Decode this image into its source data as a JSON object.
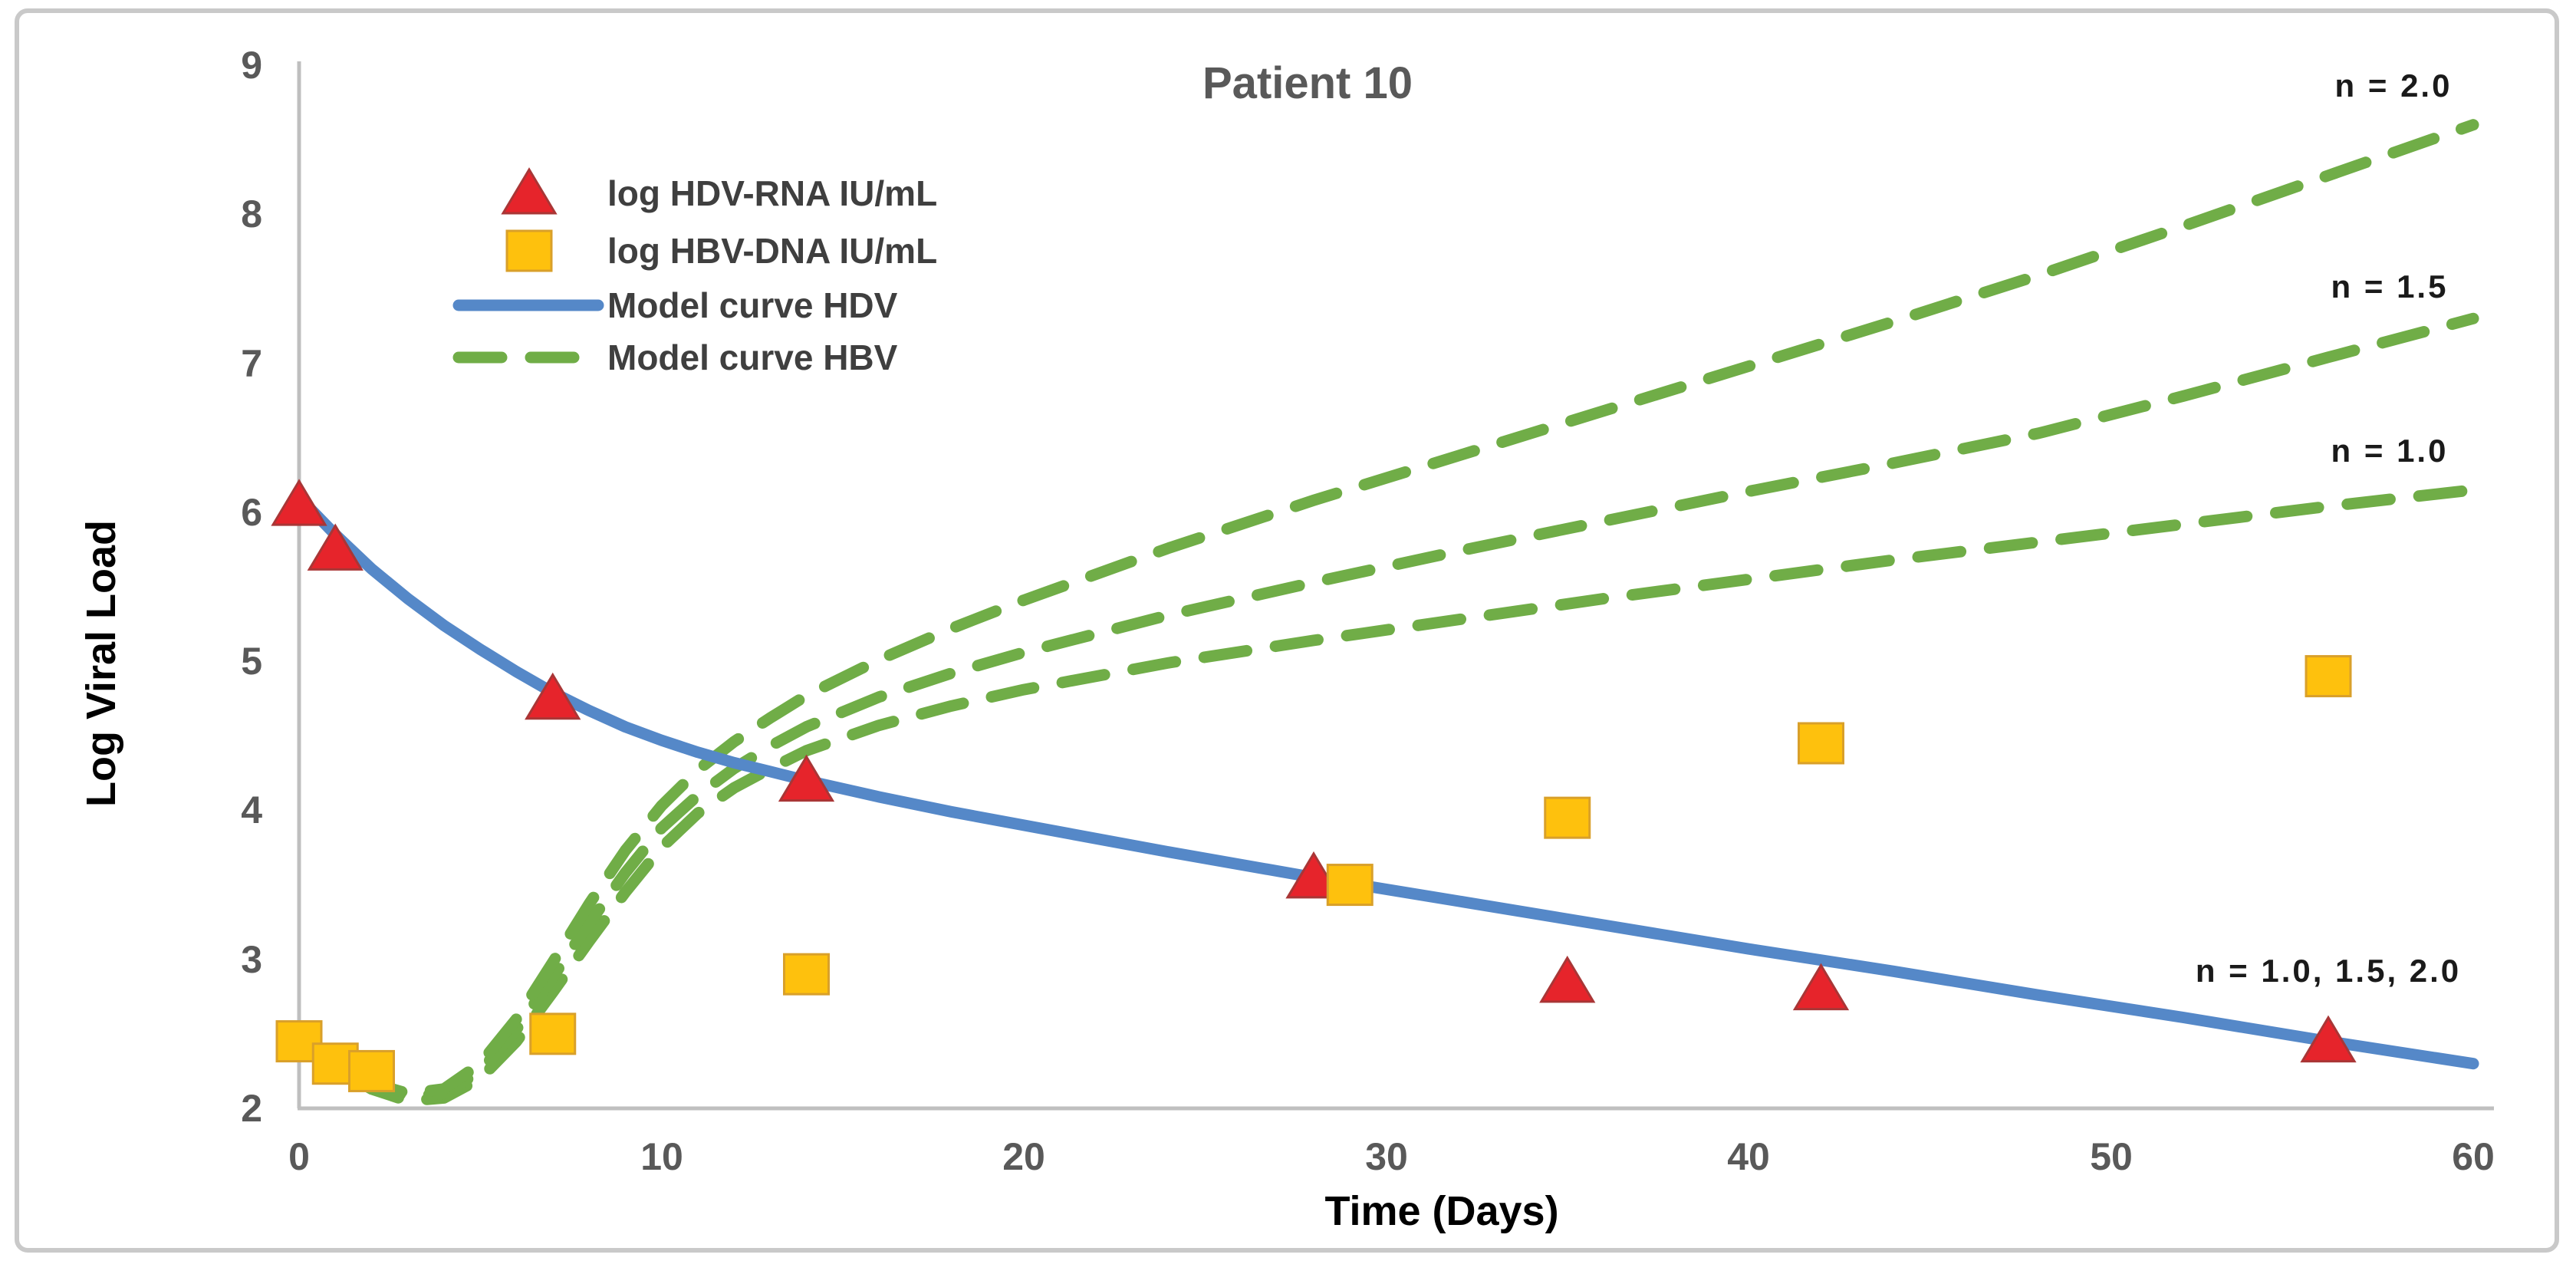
{
  "figure": {
    "title": "Patient 10",
    "x_axis_label": "Time (Days)",
    "y_axis_label": "Log Viral Load"
  },
  "legend": [
    {
      "label": "log HDV-RNA IU/mL",
      "marker": "triangle",
      "color": "#e6242b"
    },
    {
      "label": "log HBV-DNA IU/mL",
      "marker": "square",
      "color": "#fec10d"
    },
    {
      "label": "Model curve HDV",
      "marker": "line",
      "color": "#5588c8"
    },
    {
      "label": "Model curve HBV",
      "marker": "dashed-line",
      "color": "#70ad47"
    }
  ],
  "chart_data": {
    "type": "line",
    "title": "Patient 10",
    "xlabel": "Time (Days)",
    "ylabel": "Log Viral Load",
    "xlim": [
      0,
      60
    ],
    "ylim": [
      2,
      9
    ],
    "x_ticks": [
      0,
      10,
      20,
      30,
      40,
      50,
      60
    ],
    "y_ticks": [
      2,
      3,
      4,
      5,
      6,
      7,
      8,
      9
    ],
    "grid": false,
    "legend_position": "upper-left-inside",
    "series": [
      {
        "name": "log HDV-RNA IU/mL",
        "type": "scatter",
        "marker": "triangle",
        "color": "#e6242b",
        "points": [
          [
            0,
            6.05
          ],
          [
            1,
            5.75
          ],
          [
            7,
            4.75
          ],
          [
            14,
            4.2
          ],
          [
            28,
            3.55
          ],
          [
            35,
            2.85
          ],
          [
            42,
            2.8
          ],
          [
            56,
            2.45
          ]
        ]
      },
      {
        "name": "log HBV-DNA IU/mL",
        "type": "scatter",
        "marker": "square",
        "color": "#fec10d",
        "points": [
          [
            0,
            2.45
          ],
          [
            1,
            2.3
          ],
          [
            2,
            2.25
          ],
          [
            7,
            2.5
          ],
          [
            14,
            2.9
          ],
          [
            29,
            3.5
          ],
          [
            35,
            3.95
          ],
          [
            42,
            4.45
          ],
          [
            56,
            4.9
          ]
        ]
      },
      {
        "name": "Model curve HDV",
        "type": "line",
        "style": "solid",
        "color": "#5588c8",
        "points": [
          [
            0,
            6.1
          ],
          [
            1,
            5.85
          ],
          [
            2,
            5.62
          ],
          [
            3,
            5.42
          ],
          [
            4,
            5.24
          ],
          [
            5,
            5.08
          ],
          [
            6,
            4.93
          ],
          [
            7,
            4.79
          ],
          [
            8,
            4.67
          ],
          [
            9,
            4.56
          ],
          [
            10,
            4.47
          ],
          [
            11,
            4.39
          ],
          [
            12,
            4.32
          ],
          [
            13,
            4.26
          ],
          [
            14,
            4.2
          ],
          [
            16,
            4.09
          ],
          [
            18,
            3.99
          ],
          [
            20,
            3.9
          ],
          [
            24,
            3.72
          ],
          [
            28,
            3.55
          ],
          [
            32,
            3.39
          ],
          [
            36,
            3.23
          ],
          [
            40,
            3.07
          ],
          [
            44,
            2.92
          ],
          [
            48,
            2.76
          ],
          [
            52,
            2.61
          ],
          [
            56,
            2.45
          ],
          [
            60,
            2.3
          ]
        ]
      },
      {
        "name": "Model curve HBV (n = 1.0)",
        "type": "line",
        "style": "dashed",
        "color": "#70ad47",
        "points": [
          [
            0,
            2.45
          ],
          [
            1,
            2.27
          ],
          [
            2,
            2.13
          ],
          [
            3,
            2.05
          ],
          [
            4,
            2.07
          ],
          [
            5,
            2.2
          ],
          [
            6,
            2.45
          ],
          [
            7,
            2.78
          ],
          [
            8,
            3.12
          ],
          [
            9,
            3.45
          ],
          [
            10,
            3.75
          ],
          [
            11,
            3.98
          ],
          [
            12,
            4.15
          ],
          [
            13,
            4.28
          ],
          [
            14,
            4.4
          ],
          [
            16,
            4.57
          ],
          [
            18,
            4.7
          ],
          [
            20,
            4.81
          ],
          [
            24,
            4.99
          ],
          [
            28,
            5.14
          ],
          [
            32,
            5.28
          ],
          [
            36,
            5.42
          ],
          [
            40,
            5.55
          ],
          [
            44,
            5.68
          ],
          [
            48,
            5.8
          ],
          [
            52,
            5.92
          ],
          [
            56,
            6.04
          ],
          [
            60,
            6.15
          ]
        ]
      },
      {
        "name": "Model curve HBV (n = 1.5)",
        "type": "line",
        "style": "dashed",
        "color": "#70ad47",
        "points": [
          [
            0,
            2.45
          ],
          [
            1,
            2.28
          ],
          [
            2,
            2.15
          ],
          [
            3,
            2.08
          ],
          [
            4,
            2.1
          ],
          [
            5,
            2.25
          ],
          [
            6,
            2.53
          ],
          [
            7,
            2.88
          ],
          [
            8,
            3.24
          ],
          [
            9,
            3.58
          ],
          [
            10,
            3.88
          ],
          [
            11,
            4.1
          ],
          [
            12,
            4.28
          ],
          [
            13,
            4.43
          ],
          [
            14,
            4.56
          ],
          [
            16,
            4.76
          ],
          [
            18,
            4.92
          ],
          [
            20,
            5.06
          ],
          [
            24,
            5.31
          ],
          [
            28,
            5.53
          ],
          [
            32,
            5.74
          ],
          [
            36,
            5.94
          ],
          [
            40,
            6.14
          ],
          [
            44,
            6.33
          ],
          [
            48,
            6.53
          ],
          [
            52,
            6.78
          ],
          [
            56,
            7.04
          ],
          [
            60,
            7.3
          ]
        ]
      },
      {
        "name": "Model curve HBV (n = 2.0)",
        "type": "line",
        "style": "dashed",
        "color": "#70ad47",
        "points": [
          [
            0,
            2.45
          ],
          [
            1,
            2.3
          ],
          [
            2,
            2.17
          ],
          [
            3,
            2.1
          ],
          [
            4,
            2.13
          ],
          [
            5,
            2.3
          ],
          [
            6,
            2.6
          ],
          [
            7,
            2.98
          ],
          [
            8,
            3.37
          ],
          [
            9,
            3.73
          ],
          [
            10,
            4.03
          ],
          [
            11,
            4.27
          ],
          [
            12,
            4.46
          ],
          [
            13,
            4.62
          ],
          [
            14,
            4.77
          ],
          [
            16,
            5.01
          ],
          [
            18,
            5.22
          ],
          [
            20,
            5.41
          ],
          [
            24,
            5.76
          ],
          [
            28,
            6.08
          ],
          [
            32,
            6.38
          ],
          [
            36,
            6.68
          ],
          [
            40,
            6.98
          ],
          [
            44,
            7.28
          ],
          [
            48,
            7.59
          ],
          [
            52,
            7.92
          ],
          [
            56,
            8.26
          ],
          [
            60,
            8.6
          ]
        ]
      }
    ],
    "annotations": [
      {
        "text": "n = 2.0",
        "x": 57.8,
        "y": 8.86
      },
      {
        "text": "n = 1.5",
        "x": 57.7,
        "y": 7.51
      },
      {
        "text": "n = 1.0",
        "x": 57.7,
        "y": 6.41
      },
      {
        "text": "n = 1.0, 1.5, 2.0",
        "x": 56.0,
        "y": 2.92
      }
    ]
  },
  "colors": {
    "hdv_marker": "#e6242b",
    "hbv_marker": "#fec10d",
    "hdv_model": "#5588c8",
    "hbv_model": "#70ad47",
    "axis": "#bfbfbf",
    "tick_text": "#595959",
    "frame": "#c9c9c9"
  }
}
